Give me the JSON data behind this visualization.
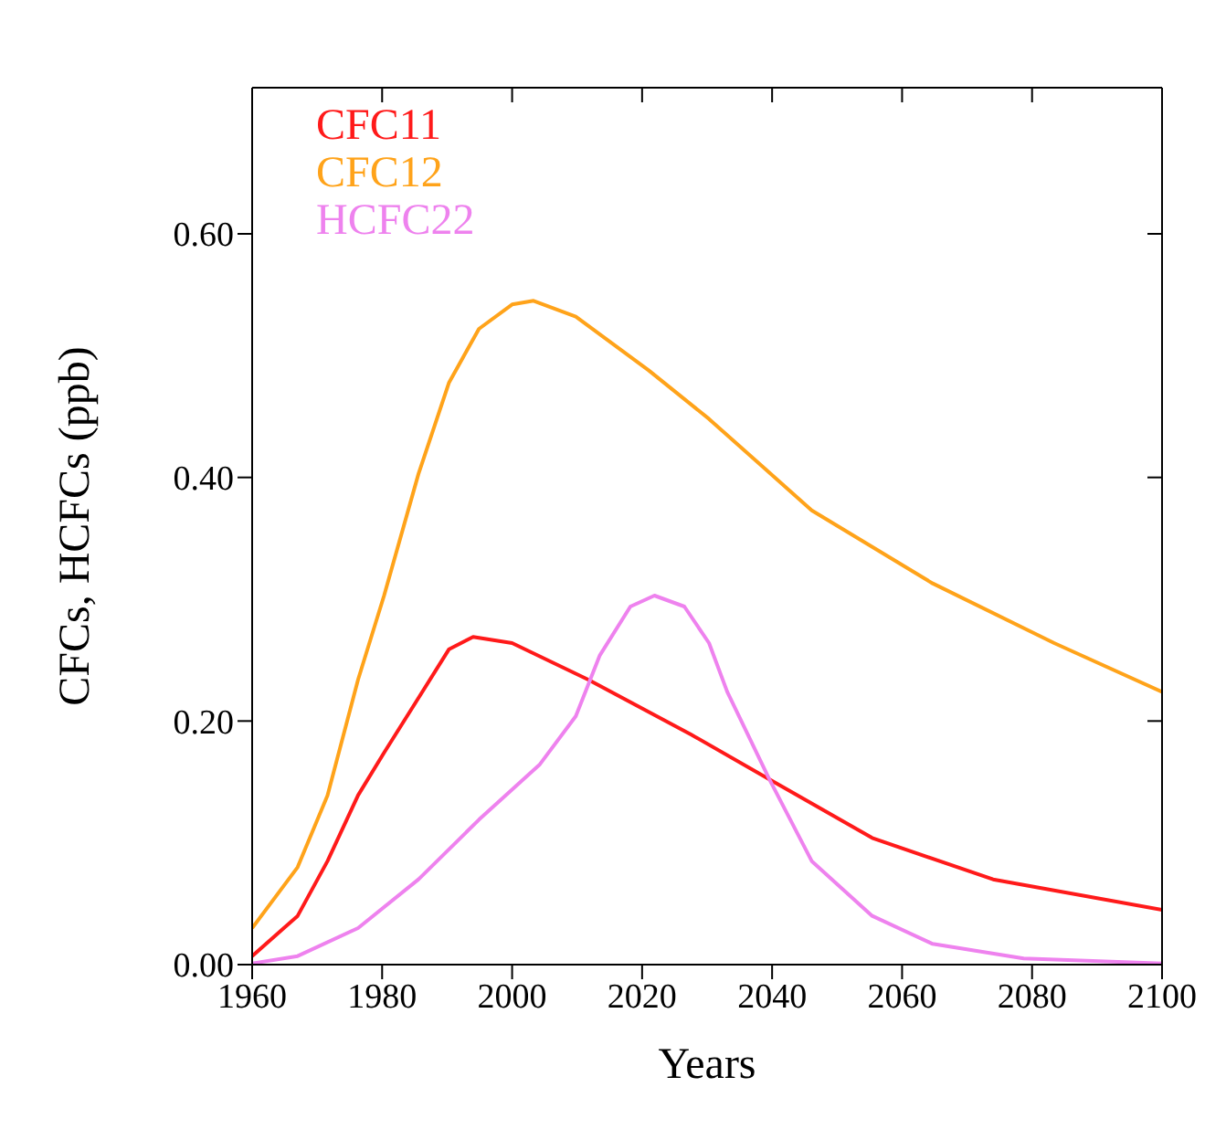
{
  "chart_data": {
    "type": "line",
    "xlabel": "Years",
    "ylabel": "CFCs, HCFCs (ppb)",
    "xlim": [
      1960,
      2100
    ],
    "xticks": [
      1960,
      1980,
      2000,
      2020,
      2040,
      2060,
      2080,
      2100
    ],
    "ylim": [
      0,
      0.72
    ],
    "yticks": [
      {
        "value": 0,
        "label": "0.00"
      },
      {
        "value": 0.2,
        "label": "0.20"
      },
      {
        "value": 0.4,
        "label": "0.40"
      },
      {
        "value": 0.6,
        "label": "0.60"
      }
    ],
    "legend": "top left",
    "marker": "none",
    "line_style": "solid",
    "series": [
      {
        "name": "CFC11",
        "color": "#ff1a1a",
        "x": [
          1960,
          1967,
          1971.6,
          1976.3,
          1980.3,
          1985.6,
          1990.3,
          1994,
          2000,
          2011.7,
          2027.5,
          2039.6,
          2055.4,
          2074,
          2100
        ],
        "values": [
          0.007,
          0.04,
          0.085,
          0.139,
          0.174,
          0.219,
          0.259,
          0.269,
          0.264,
          0.234,
          0.189,
          0.152,
          0.104,
          0.07,
          0.045
        ]
      },
      {
        "name": "CFC12",
        "color": "#ffa31a",
        "x": [
          1960,
          1967,
          1971.6,
          1976.3,
          1980.3,
          1985.6,
          1990.3,
          1994.9,
          2000,
          2003.3,
          2009.8,
          2021,
          2030.3,
          2046.1,
          2064.7,
          2083.4,
          2100
        ],
        "values": [
          0.03,
          0.08,
          0.139,
          0.234,
          0.303,
          0.403,
          0.478,
          0.522,
          0.542,
          0.545,
          0.532,
          0.488,
          0.448,
          0.373,
          0.313,
          0.264,
          0.224
        ]
      },
      {
        "name": "HCFC22",
        "color": "#ee82ee",
        "x": [
          1960,
          1967,
          1976.3,
          1985.6,
          1994.9,
          2004.2,
          2009.8,
          2013.5,
          2018.2,
          2021.9,
          2026.5,
          2030.3,
          2033.1,
          2039.6,
          2046.1,
          2055.4,
          2064.7,
          2078.7,
          2100
        ],
        "values": [
          0.001,
          0.007,
          0.03,
          0.07,
          0.119,
          0.164,
          0.204,
          0.254,
          0.294,
          0.303,
          0.294,
          0.264,
          0.224,
          0.152,
          0.085,
          0.04,
          0.017,
          0.005,
          0.001
        ]
      }
    ]
  }
}
